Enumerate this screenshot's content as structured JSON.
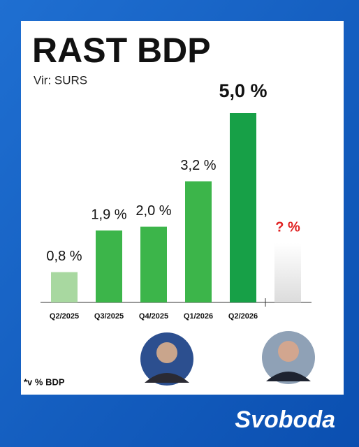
{
  "chart_data": {
    "type": "bar",
    "title": "RAST BDP",
    "subtitle": "Vir: SURS",
    "categories": [
      "Q2/2025",
      "Q3/2025",
      "Q4/2025",
      "Q1/2026",
      "Q2/2026",
      null
    ],
    "values": [
      0.8,
      1.9,
      2.0,
      3.2,
      5.0,
      null
    ],
    "value_labels": [
      "0,8 %",
      "1,9 %",
      "2,0 %",
      "3,2 %",
      "5,0 %",
      "? %"
    ],
    "colors": [
      "#a8d8a0",
      "#3cb54a",
      "#3cb54a",
      "#3cb54a",
      "#17a047",
      "#e4e4e4"
    ],
    "footnote": "*v % BDP",
    "brand": "Svoboda"
  }
}
